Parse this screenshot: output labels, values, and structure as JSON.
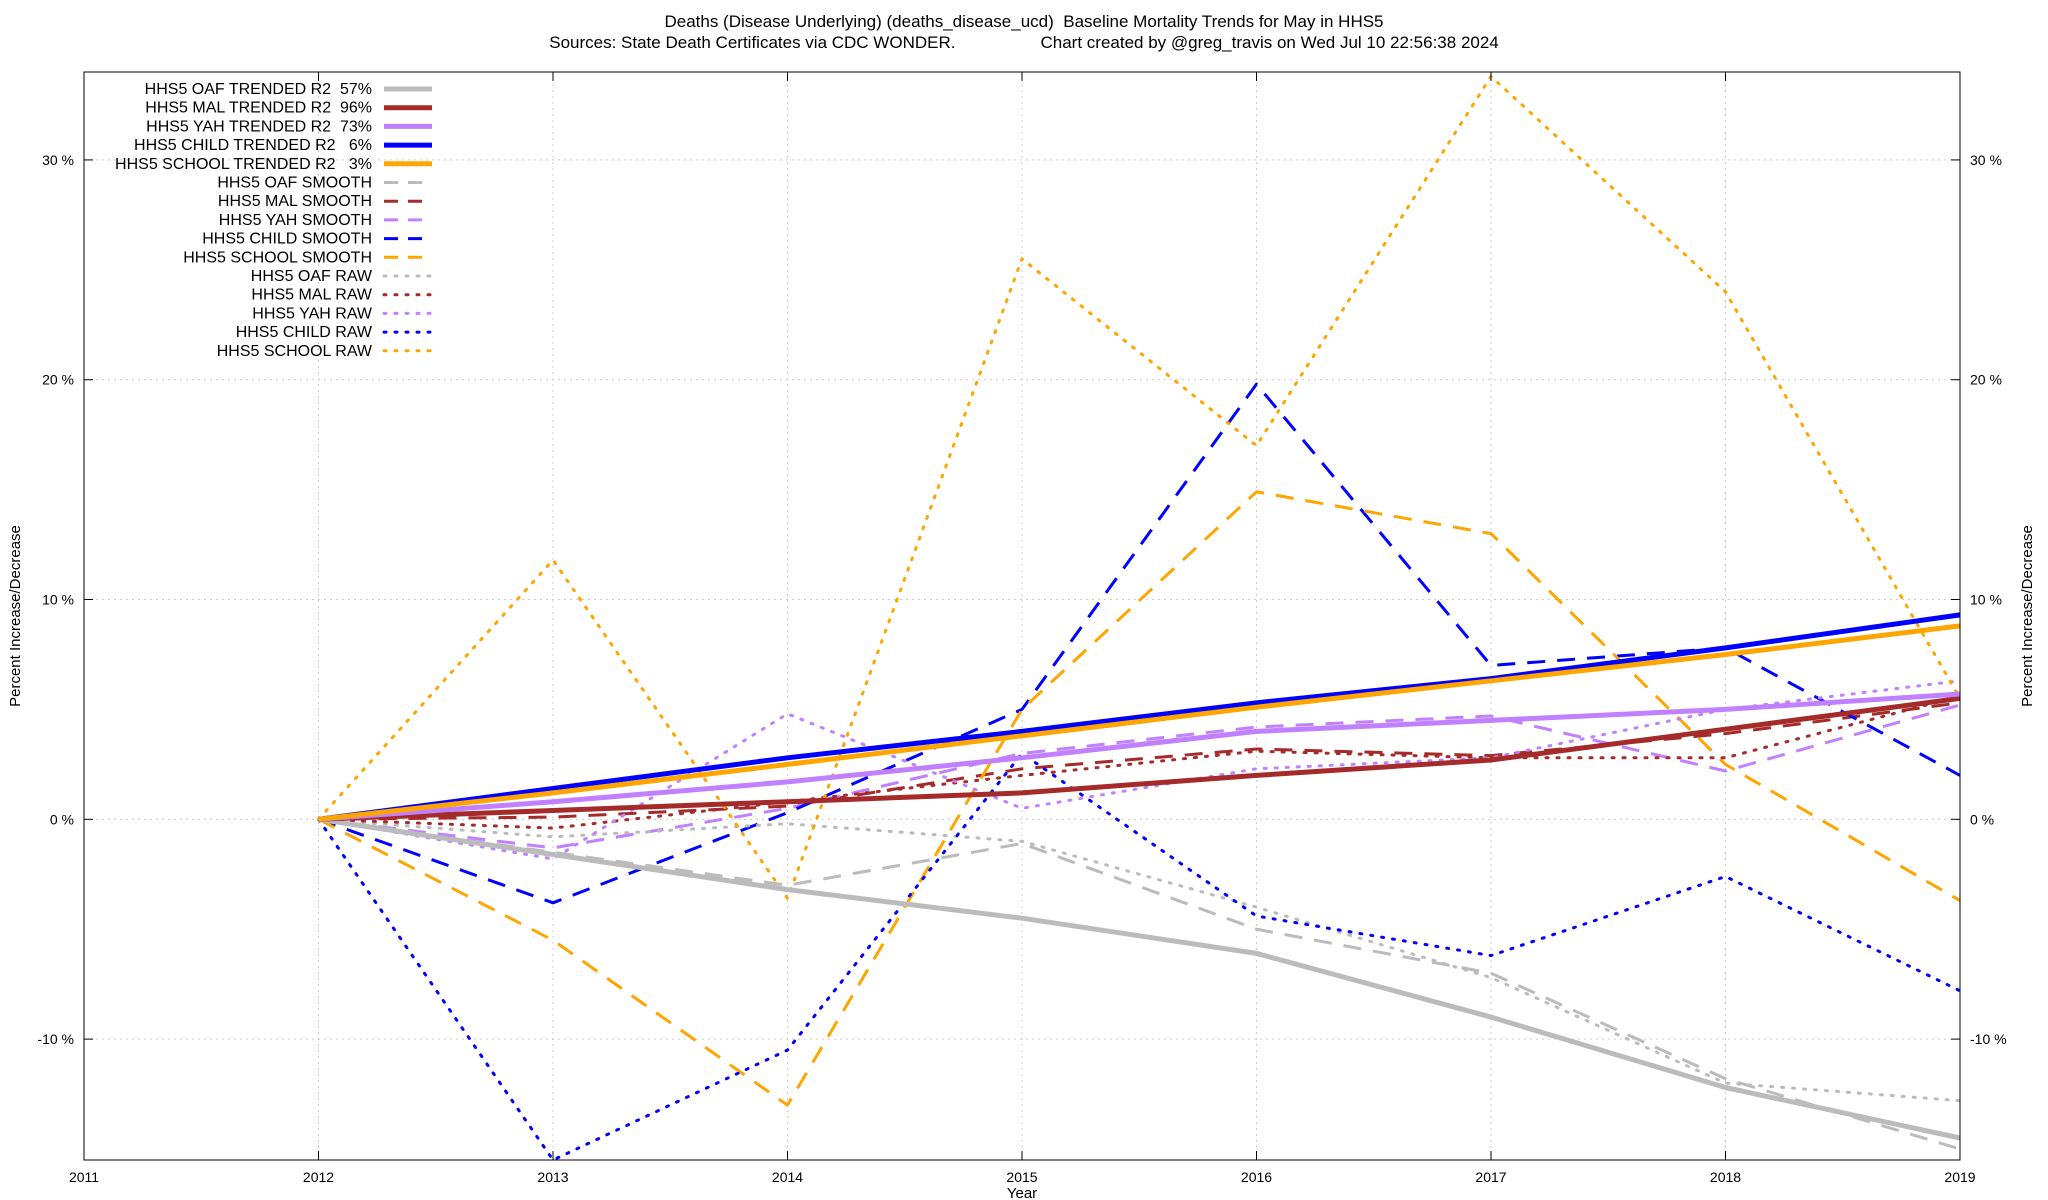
{
  "title_line1": "Deaths (Disease Underlying) (deaths_disease_ucd)  Baseline Mortality Trends for May in HHS5",
  "title_line2": "Sources: State Death Certificates via CDC WONDER.                  Chart created by @greg_travis on Wed Jul 10 22:56:38 2024",
  "chart_data": {
    "type": "line",
    "title": "Deaths (Disease Underlying) (deaths_disease_ucd)  Baseline Mortality Trends for May in HHS5",
    "subtitle": "Sources: State Death Certificates via CDC WONDER.                  Chart created by @greg_travis on Wed Jul 10 22:56:38 2024",
    "xlabel": "Year",
    "ylabel": "Percent Increase/Decrease",
    "y2label": "Percent Increase/Decrease",
    "xlim": [
      2011,
      2019
    ],
    "ylim": [
      -15.5,
      34
    ],
    "x_ticks": [
      2011,
      2012,
      2013,
      2014,
      2015,
      2016,
      2017,
      2018,
      2019
    ],
    "y_ticks": [
      {
        "value": -10,
        "label": "-10 %"
      },
      {
        "value": 0,
        "label": "0 %"
      },
      {
        "value": 10,
        "label": "10 %"
      },
      {
        "value": 20,
        "label": "20 %"
      },
      {
        "value": 30,
        "label": "30 %"
      }
    ],
    "grid": true,
    "legend_position": "top-left",
    "series": [
      {
        "name": "HHS5 OAF TRENDED R2  57%",
        "color": "#bbbbbb",
        "style": "solid",
        "x": [
          2012,
          2013,
          2014,
          2015,
          2016,
          2017,
          2018,
          2019
        ],
        "values": [
          0,
          -1.6,
          -3.2,
          -4.5,
          -6.1,
          -9.0,
          -12.2,
          -14.5
        ]
      },
      {
        "name": "HHS5 MAL TRENDED R2  96%",
        "color": "#a52a2a",
        "style": "solid",
        "x": [
          2012,
          2013,
          2014,
          2015,
          2016,
          2017,
          2018,
          2019
        ],
        "values": [
          0,
          0.4,
          0.8,
          1.2,
          2.0,
          2.7,
          4.1,
          5.5
        ]
      },
      {
        "name": "HHS5 YAH TRENDED R2  73%",
        "color": "#c080ff",
        "style": "solid",
        "x": [
          2012,
          2013,
          2014,
          2015,
          2016,
          2017,
          2018,
          2019
        ],
        "values": [
          0,
          0.8,
          1.7,
          2.8,
          4.0,
          4.5,
          5.0,
          5.7
        ]
      },
      {
        "name": "HHS5 CHILD TRENDED R2   6%",
        "color": "#0000ff",
        "style": "solid",
        "x": [
          2012,
          2013,
          2014,
          2015,
          2016,
          2017,
          2018,
          2019
        ],
        "values": [
          0,
          1.4,
          2.8,
          4.0,
          5.3,
          6.4,
          7.8,
          9.3
        ]
      },
      {
        "name": "HHS5 SCHOOL TRENDED R2   3%",
        "color": "#ffa500",
        "style": "solid",
        "x": [
          2012,
          2013,
          2014,
          2015,
          2016,
          2017,
          2018,
          2019
        ],
        "values": [
          0,
          1.2,
          2.5,
          3.8,
          5.1,
          6.3,
          7.5,
          8.8
        ]
      },
      {
        "name": "HHS5 OAF SMOOTH",
        "color": "#bbbbbb",
        "style": "dash",
        "x": [
          2012,
          2013,
          2014,
          2015,
          2016,
          2017,
          2018,
          2019
        ],
        "values": [
          0,
          -1.5,
          -3.0,
          -1.1,
          -5.0,
          -7.0,
          -11.8,
          -15.0
        ]
      },
      {
        "name": "HHS5 MAL SMOOTH",
        "color": "#a52a2a",
        "style": "dash",
        "x": [
          2012,
          2013,
          2014,
          2015,
          2016,
          2017,
          2018,
          2019
        ],
        "values": [
          0,
          0.1,
          0.6,
          2.3,
          3.2,
          2.9,
          3.9,
          5.3
        ]
      },
      {
        "name": "HHS5 YAH SMOOTH",
        "color": "#c080ff",
        "style": "dash",
        "x": [
          2012,
          2013,
          2014,
          2015,
          2016,
          2017,
          2018,
          2019
        ],
        "values": [
          0,
          -1.3,
          0.5,
          3.0,
          4.2,
          4.7,
          2.2,
          5.2
        ]
      },
      {
        "name": "HHS5 CHILD SMOOTH",
        "color": "#0000ff",
        "style": "dash",
        "x": [
          2012,
          2013,
          2014,
          2015,
          2016,
          2017,
          2018,
          2019
        ],
        "values": [
          0,
          -3.8,
          0.3,
          5.0,
          19.8,
          7.0,
          7.8,
          2.0
        ]
      },
      {
        "name": "HHS5 SCHOOL SMOOTH",
        "color": "#ffa500",
        "style": "dash",
        "x": [
          2012,
          2013,
          2014,
          2015,
          2016,
          2017,
          2018,
          2019
        ],
        "values": [
          0,
          -5.5,
          -13.0,
          5.0,
          14.9,
          13.0,
          2.5,
          -3.7
        ]
      },
      {
        "name": "HHS5 OAF RAW",
        "color": "#bbbbbb",
        "style": "dot",
        "x": [
          2012,
          2013,
          2014,
          2015,
          2016,
          2017,
          2018,
          2019
        ],
        "values": [
          0,
          -0.8,
          -0.2,
          -1.0,
          -4.0,
          -7.2,
          -12.0,
          -12.8
        ]
      },
      {
        "name": "HHS5 MAL RAW",
        "color": "#a52a2a",
        "style": "dot",
        "x": [
          2012,
          2013,
          2014,
          2015,
          2016,
          2017,
          2018,
          2019
        ],
        "values": [
          0,
          -0.4,
          0.8,
          2.0,
          3.1,
          2.8,
          2.8,
          5.6
        ]
      },
      {
        "name": "HHS5 YAH RAW",
        "color": "#c080ff",
        "style": "dot",
        "x": [
          2012,
          2013,
          2014,
          2015,
          2016,
          2017,
          2018,
          2019
        ],
        "values": [
          0,
          -1.8,
          4.8,
          0.5,
          2.3,
          2.8,
          5.0,
          6.3
        ]
      },
      {
        "name": "HHS5 CHILD RAW",
        "color": "#0000ff",
        "style": "dot",
        "x": [
          2012,
          2013,
          2014,
          2015,
          2016,
          2017,
          2018,
          2019
        ],
        "values": [
          0,
          -15.5,
          -10.5,
          3.0,
          -4.4,
          -6.2,
          -2.6,
          -7.8
        ]
      },
      {
        "name": "HHS5 SCHOOL RAW",
        "color": "#ffa500",
        "style": "dot",
        "x": [
          2012,
          2013,
          2014,
          2015,
          2016,
          2017,
          2018,
          2019
        ],
        "values": [
          0,
          11.8,
          -3.6,
          25.5,
          17.0,
          33.8,
          24.0,
          5.5
        ]
      }
    ]
  }
}
